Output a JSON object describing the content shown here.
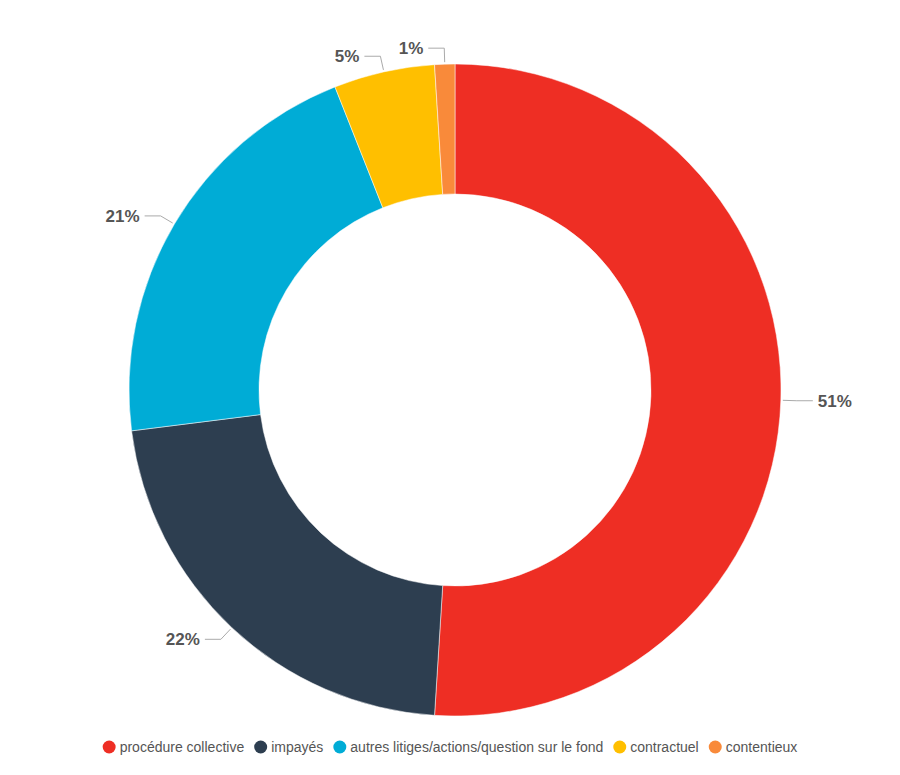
{
  "chart_data": {
    "type": "pie",
    "categories": [
      "procédure collective",
      "impayés",
      "autres litiges/actions/question sur le fond",
      "contractuel",
      "contentieux"
    ],
    "values": [
      51,
      22,
      21,
      5,
      1
    ],
    "value_labels": [
      "51%",
      "22%",
      "21%",
      "5%",
      "1%"
    ],
    "colors": [
      "#ee2e24",
      "#2d3e50",
      "#00acd6",
      "#ffbf00",
      "#f98a3a"
    ],
    "data_labels": true,
    "legend": "bottom"
  }
}
